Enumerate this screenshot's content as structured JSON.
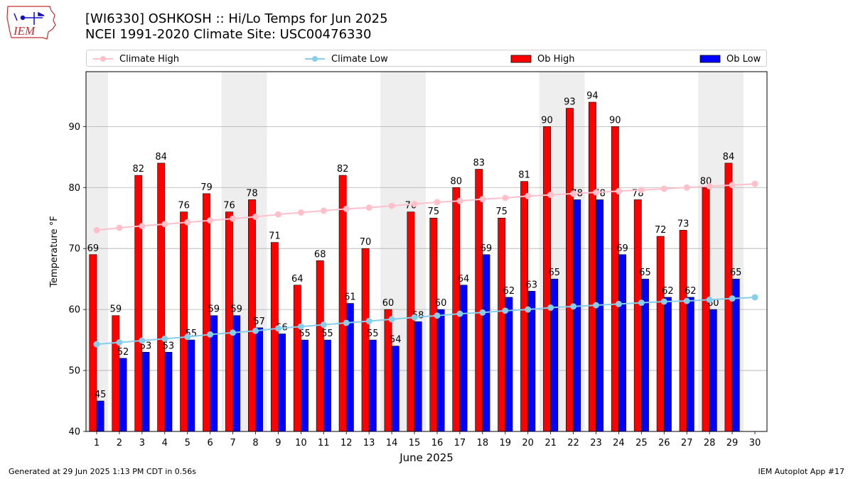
{
  "header": {
    "title_line1": "[WI6330] OSHKOSH :: Hi/Lo Temps for Jun 2025",
    "title_line2": "NCEI 1991-2020 Climate Site: USC00476330",
    "logo_text": "IEM"
  },
  "legend": {
    "items": [
      "Climate High",
      "Climate Low",
      "Ob High",
      "Ob Low"
    ]
  },
  "footer": {
    "left": "Generated at 29 Jun 2025 1:13 PM CDT in 0.56s",
    "right": "IEM Autoplot App #17"
  },
  "colors": {
    "ob_high": "#ff0000",
    "ob_low": "#0000ff",
    "climate_high": "#ffc0cb",
    "climate_low": "#87ceeb",
    "weekend_band": "#eeeeee"
  },
  "chart_data": {
    "type": "bar",
    "xlabel": "June 2025",
    "ylabel": "Temperature °F",
    "ylim": [
      40,
      99
    ],
    "yticks": [
      40,
      50,
      60,
      70,
      80,
      90
    ],
    "grid": "horizontal",
    "legend_position": "top",
    "categories": [
      1,
      2,
      3,
      4,
      5,
      6,
      7,
      8,
      9,
      10,
      11,
      12,
      13,
      14,
      15,
      16,
      17,
      18,
      19,
      20,
      21,
      22,
      23,
      24,
      25,
      26,
      27,
      28,
      29,
      30
    ],
    "weekend_days": [
      1,
      7,
      8,
      14,
      15,
      21,
      22,
      28,
      29
    ],
    "series": [
      {
        "name": "Ob High",
        "kind": "bar",
        "values": [
          69,
          59,
          82,
          84,
          76,
          79,
          76,
          78,
          71,
          64,
          68,
          82,
          70,
          60,
          76,
          75,
          80,
          83,
          75,
          81,
          90,
          93,
          94,
          90,
          78,
          72,
          73,
          80,
          84,
          null
        ]
      },
      {
        "name": "Ob Low",
        "kind": "bar",
        "values": [
          45,
          52,
          53,
          53,
          55,
          59,
          59,
          57,
          56,
          55,
          55,
          61,
          55,
          54,
          58,
          60,
          64,
          69,
          62,
          63,
          65,
          78,
          78,
          69,
          65,
          62,
          62,
          60,
          65,
          null
        ]
      },
      {
        "name": "Climate High",
        "kind": "line",
        "values": [
          73.0,
          73.4,
          73.7,
          74.0,
          74.3,
          74.6,
          74.9,
          75.2,
          75.6,
          75.9,
          76.2,
          76.5,
          76.7,
          77.0,
          77.3,
          77.6,
          77.8,
          78.1,
          78.3,
          78.6,
          78.8,
          79.0,
          79.2,
          79.4,
          79.6,
          79.8,
          80.0,
          80.2,
          80.4,
          80.6
        ]
      },
      {
        "name": "Climate Low",
        "kind": "line",
        "values": [
          54.3,
          54.6,
          54.9,
          55.2,
          55.5,
          55.9,
          56.2,
          56.5,
          56.9,
          57.2,
          57.5,
          57.8,
          58.1,
          58.4,
          58.7,
          59.0,
          59.3,
          59.5,
          59.8,
          60.0,
          60.3,
          60.5,
          60.7,
          60.9,
          61.1,
          61.3,
          61.4,
          61.6,
          61.8,
          62.0
        ]
      }
    ]
  }
}
